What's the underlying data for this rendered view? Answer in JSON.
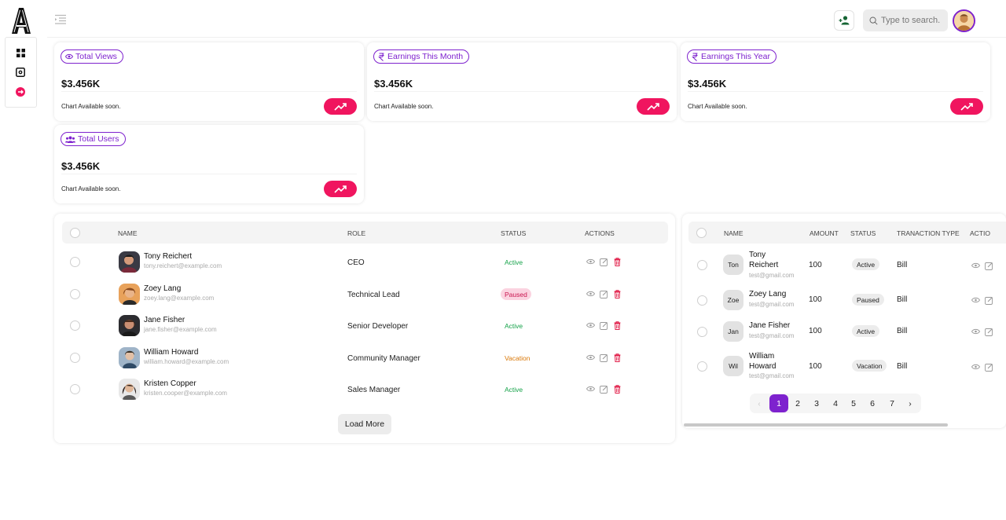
{
  "stats": [
    {
      "label": "Total Views",
      "icon": "eye-icon",
      "value": "$3.456K",
      "note": "Chart Available soon."
    },
    {
      "label": "Earnings This Month",
      "icon": "money-icon",
      "value": "$3.456K",
      "note": "Chart Available soon."
    },
    {
      "label": "Earnings This Year",
      "icon": "money-icon",
      "value": "$3.456K",
      "note": "Chart Available soon."
    },
    {
      "label": "Total Users",
      "icon": "users-icon",
      "value": "$3.456K",
      "note": "Chart Available soon."
    }
  ],
  "search": {
    "placeholder": "Type to search."
  },
  "table1": {
    "headers": {
      "name": "NAME",
      "role": "ROLE",
      "status": "STATUS",
      "actions": "ACTIONS"
    },
    "rows": [
      {
        "name": "Tony Reichert",
        "email": "tony.reichert@example.com",
        "role": "CEO",
        "status": "Active"
      },
      {
        "name": "Zoey Lang",
        "email": "zoey.lang@example.com",
        "role": "Technical Lead",
        "status": "Paused"
      },
      {
        "name": "Jane Fisher",
        "email": "jane.fisher@example.com",
        "role": "Senior Developer",
        "status": "Active"
      },
      {
        "name": "William Howard",
        "email": "william.howard@example.com",
        "role": "Community Manager",
        "status": "Vacation"
      },
      {
        "name": "Kristen Copper",
        "email": "kristen.cooper@example.com",
        "role": "Sales Manager",
        "status": "Active"
      }
    ],
    "load_more": "Load More"
  },
  "table2": {
    "headers": {
      "name": "NAME",
      "amount": "AMOUNT",
      "status": "STATUS",
      "type": "TRANACTION TYPE",
      "actions": "ACTIO"
    },
    "rows": [
      {
        "initial": "Ton",
        "name_line1": "Tony",
        "name_line2": "Reichert",
        "email": "test@gmail.com",
        "amount": "100",
        "status": "Active",
        "type": "Bill"
      },
      {
        "initial": "Zoe",
        "name_line1": "Zoey Lang",
        "name_line2": "",
        "email": "test@gmail.com",
        "amount": "100",
        "status": "Paused",
        "type": "Bill"
      },
      {
        "initial": "Jan",
        "name_line1": "Jane Fisher",
        "name_line2": "",
        "email": "test@gmail.com",
        "amount": "100",
        "status": "Active",
        "type": "Bill"
      },
      {
        "initial": "Wil",
        "name_line1": "William",
        "name_line2": "Howard",
        "email": "test@gmail.com",
        "amount": "100",
        "status": "Vacation",
        "type": "Bill"
      }
    ],
    "pagination": {
      "prev": "‹",
      "pages": [
        "1",
        "2",
        "3",
        "4",
        "5",
        "6",
        "7"
      ],
      "next": "›",
      "current": "1"
    }
  },
  "colors": {
    "accent": "#7e22ce",
    "trend": "#f0155f",
    "active": "#16a34a",
    "paused_bg": "#fbd3e0",
    "paused_text": "#c9154f",
    "vacation": "#d97706",
    "delete": "#e11d48"
  }
}
